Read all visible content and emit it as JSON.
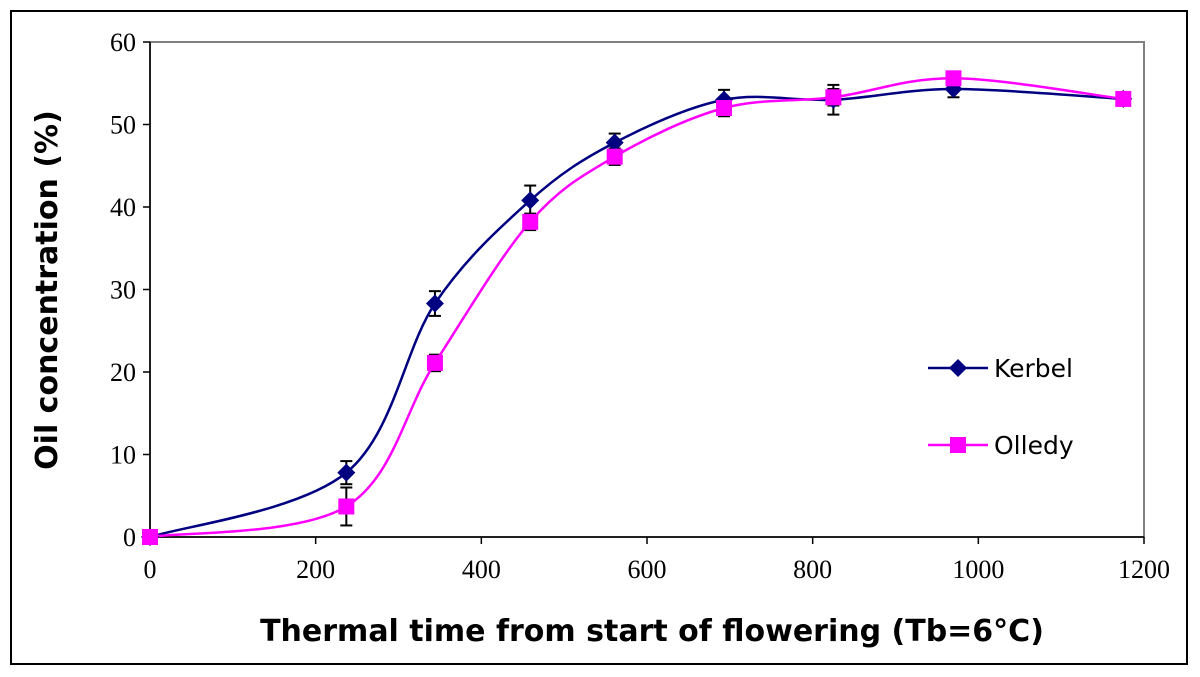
{
  "chart_data": {
    "type": "line",
    "xlabel": "Thermal time from start of flowering (Tb=6°C)",
    "ylabel": "Oil concentration (%)",
    "xlim": [
      0,
      1200
    ],
    "ylim": [
      0,
      60
    ],
    "xticks": [
      0,
      200,
      400,
      600,
      800,
      1000,
      1200
    ],
    "yticks": [
      0,
      10,
      20,
      30,
      40,
      50,
      60
    ],
    "grid": false,
    "legend_position": "right",
    "series": [
      {
        "name": "Kerbel",
        "color": "#000080",
        "marker": "diamond",
        "x": [
          0,
          237,
          344,
          459,
          561,
          693,
          825,
          970,
          1175
        ],
        "y": [
          0,
          7.8,
          28.3,
          40.8,
          47.8,
          53.0,
          53.0,
          54.3,
          53.1
        ],
        "err": [
          0.5,
          1.4,
          1.5,
          1.8,
          1.1,
          1.2,
          1.8,
          1.0,
          0.6
        ]
      },
      {
        "name": "Olledy",
        "color": "#ff00ff",
        "marker": "square",
        "x": [
          0,
          237,
          344,
          459,
          561,
          693,
          825,
          970,
          1175
        ],
        "y": [
          0,
          3.7,
          21.1,
          38.2,
          46.1,
          52.0,
          53.3,
          55.6,
          53.1
        ],
        "err": [
          0.4,
          2.3,
          1.0,
          1.0,
          1.0,
          1.0,
          1.0,
          0.6,
          0.5
        ]
      }
    ]
  }
}
